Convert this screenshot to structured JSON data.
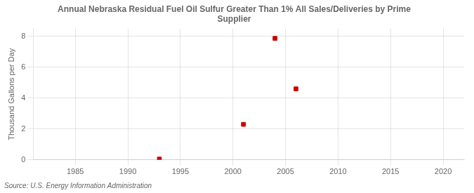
{
  "chart_data": {
    "type": "scatter",
    "title": "Annual Nebraska Residual Fuel Oil Sulfur Greater Than 1% All Sales/Deliveries by Prime\nSupplier",
    "ylabel": "Thousand Gallons per Day",
    "annotations": [
      "Source: U.S. Energy Information Administration"
    ],
    "x": [
      1993,
      2001,
      2004,
      2006
    ],
    "values": [
      0.05,
      2.3,
      7.87,
      4.6
    ],
    "color": "#cc0000",
    "marker": "square",
    "xlim": [
      1981,
      2022
    ],
    "xticks": [
      1985,
      1990,
      1995,
      2000,
      2005,
      2010,
      2015,
      2020
    ],
    "ylim": [
      0,
      8.5
    ],
    "yticks": [
      0,
      2,
      4,
      6,
      8
    ],
    "grid": true
  }
}
